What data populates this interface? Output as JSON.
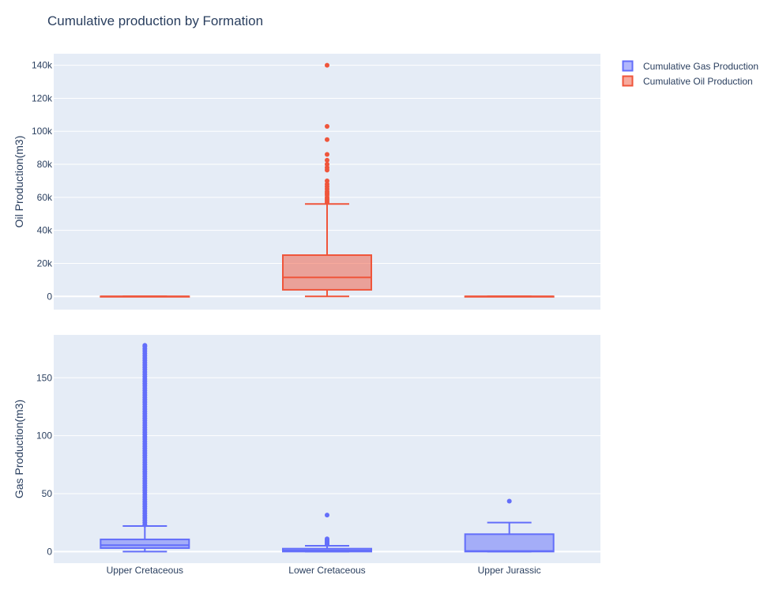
{
  "chart_data": {
    "type": "box",
    "title": "Cumulative production by Formation",
    "categories": [
      "Upper Cretaceous",
      "Lower Cretaceous",
      "Upper Jurassic"
    ],
    "legend": {
      "placement": "top-right",
      "entries": [
        "Cumulative Gas Production",
        "Cumulative Oil Production"
      ]
    },
    "colors": {
      "gas": "#636efa",
      "oil": "#ef553b",
      "plot_bg": "#e5ecf6",
      "grid": "#ffffff"
    },
    "subplots": [
      {
        "id": "oil",
        "ylabel": "Oil Production(m3)",
        "ylim": [
          -8000,
          147000
        ],
        "ticks": [
          {
            "value": 0,
            "label": "0"
          },
          {
            "value": 20000,
            "label": "20k"
          },
          {
            "value": 40000,
            "label": "40k"
          },
          {
            "value": 60000,
            "label": "60k"
          },
          {
            "value": 80000,
            "label": "80k"
          },
          {
            "value": 100000,
            "label": "100k"
          },
          {
            "value": 120000,
            "label": "120k"
          },
          {
            "value": 140000,
            "label": "140k"
          }
        ],
        "series": [
          {
            "name": "Cumulative Oil Production",
            "color": "#ef553b",
            "boxes": [
              {
                "category": "Upper Cretaceous",
                "min": 0,
                "q1": 0,
                "median": 0,
                "q3": 0,
                "max": 0,
                "outliers": []
              },
              {
                "category": "Lower Cretaceous",
                "min": 0,
                "q1": 4000,
                "median": 11500,
                "q3": 25000,
                "max": 56000,
                "outliers": [
                  57000,
                  58000,
                  59000,
                  60000,
                  61500,
                  62500,
                  63500,
                  65000,
                  66500,
                  68000,
                  70000,
                  76500,
                  78000,
                  80000,
                  82500,
                  86000,
                  95000,
                  103000,
                  140000
                ]
              },
              {
                "category": "Upper Jurassic",
                "min": 0,
                "q1": 0,
                "median": 0,
                "q3": 0,
                "max": 0,
                "outliers": []
              }
            ]
          }
        ]
      },
      {
        "id": "gas",
        "ylabel": "Gas Production(m3)",
        "ylim": [
          -10,
          187
        ],
        "ticks": [
          {
            "value": 0,
            "label": "0"
          },
          {
            "value": 50,
            "label": "50"
          },
          {
            "value": 100,
            "label": "100"
          },
          {
            "value": 150,
            "label": "150"
          }
        ],
        "series": [
          {
            "name": "Cumulative Gas Production",
            "color": "#636efa",
            "boxes": [
              {
                "category": "Upper Cretaceous",
                "min": 0,
                "q1": 3,
                "median": 5.5,
                "q3": 10.5,
                "max": 22,
                "outliers": [
                  23,
                  25,
                  27,
                  29,
                  31,
                  33,
                  35,
                  37,
                  39,
                  41,
                  43,
                  45,
                  47,
                  49,
                  51,
                  53,
                  55,
                  57,
                  59,
                  61,
                  63,
                  65,
                  67,
                  69,
                  71,
                  73,
                  75,
                  77,
                  79,
                  81,
                  83,
                  85,
                  87,
                  89,
                  91,
                  93,
                  95,
                  97,
                  99,
                  101,
                  103,
                  105,
                  107,
                  109,
                  111,
                  113,
                  115,
                  117,
                  119,
                  121,
                  123,
                  125,
                  127,
                  129,
                  131,
                  133,
                  135,
                  137,
                  139,
                  141,
                  143,
                  145,
                  147,
                  149,
                  151,
                  153,
                  155,
                  157,
                  159,
                  161,
                  163,
                  165,
                  167,
                  169,
                  171,
                  173,
                  175,
                  177,
                  178
                ]
              },
              {
                "category": "Lower Cretaceous",
                "min": 0,
                "q1": 0,
                "median": 1,
                "q3": 2.5,
                "max": 5,
                "outliers": [
                  6,
                  7,
                  8,
                  9,
                  10,
                  11,
                  31.5
                ]
              },
              {
                "category": "Upper Jurassic",
                "min": 0,
                "q1": 0,
                "median": 0.5,
                "q3": 15,
                "max": 25,
                "outliers": [
                  43.5
                ]
              }
            ]
          }
        ]
      }
    ]
  }
}
